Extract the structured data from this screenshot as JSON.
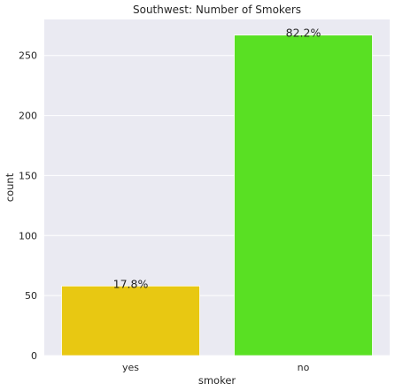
{
  "chart_data": {
    "type": "bar",
    "title": "Southwest: Number of Smokers",
    "xlabel": "smoker",
    "ylabel": "count",
    "categories": [
      "yes",
      "no"
    ],
    "values": [
      58,
      267
    ],
    "data_labels": [
      "17.8%",
      "82.2%"
    ],
    "bar_colors": [
      "#e8c812",
      "#59e023"
    ],
    "ylim": [
      0,
      280
    ],
    "yticks": [
      0,
      50,
      100,
      150,
      200,
      250
    ],
    "grid": true,
    "background_color": "#eaeaf2"
  }
}
